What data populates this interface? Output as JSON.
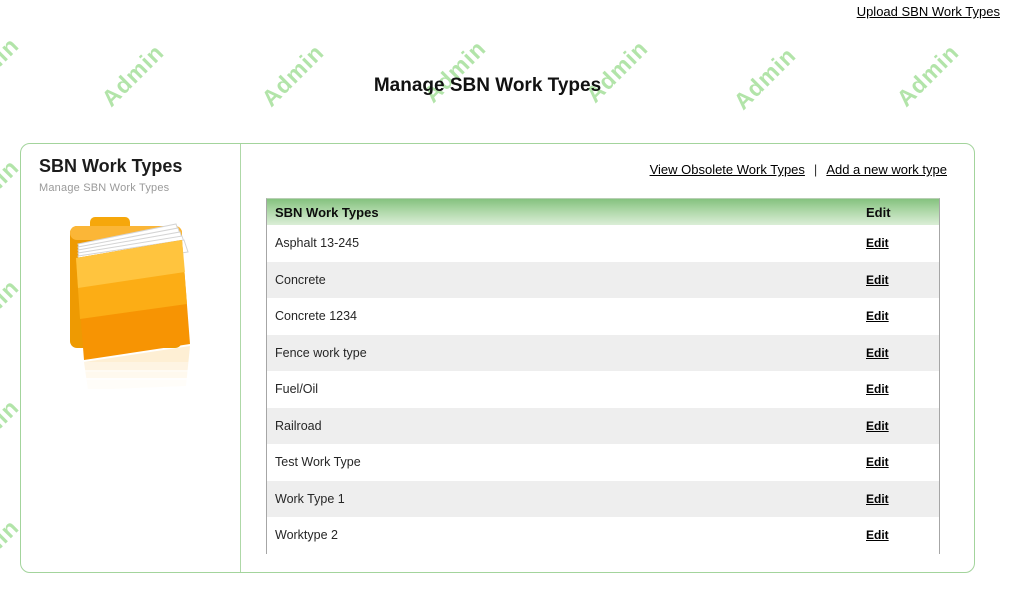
{
  "page": {
    "watermark": "Admin",
    "upload_link_label": "Upload SBN Work Types",
    "title": "Manage SBN Work Types"
  },
  "sidebar": {
    "heading": "SBN Work Types",
    "subheading": "Manage SBN Work Types",
    "icon": "orange-folder-icon"
  },
  "toolbar": {
    "view_obsolete_label": "View Obsolete Work Types",
    "separator": "|",
    "add_new_label": "Add a new work type"
  },
  "table": {
    "columns": {
      "name": "SBN Work Types",
      "edit": "Edit"
    },
    "edit_label": "Edit",
    "rows": [
      {
        "name": "Asphalt 13-245"
      },
      {
        "name": "Concrete"
      },
      {
        "name": "Concrete 1234"
      },
      {
        "name": "Fence work type"
      },
      {
        "name": "Fuel/Oil"
      },
      {
        "name": "Railroad"
      },
      {
        "name": "Test Work Type"
      },
      {
        "name": "Work Type 1"
      },
      {
        "name": "Worktype 2"
      }
    ]
  },
  "colors": {
    "watermark_green": "#b2e4a9",
    "panel_border_green": "#a3d49c",
    "table_header_green_top": "#85c27f",
    "table_header_green_bottom": "#dbeed7",
    "row_alt_gray": "#eeeeee",
    "table_border_gray": "#a6a6a6",
    "folder_orange": "#f9a70e"
  }
}
